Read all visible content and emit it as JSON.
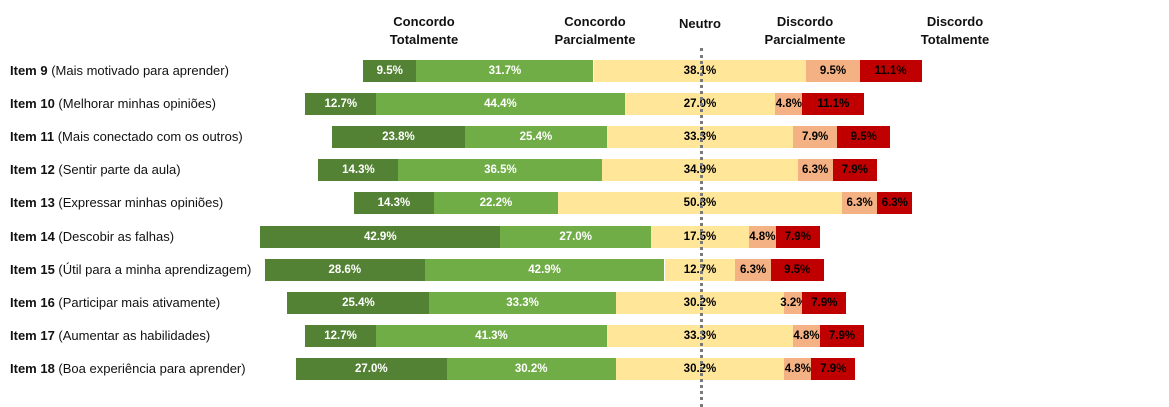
{
  "chart_data": {
    "type": "bar",
    "subtype": "diverging-stacked-horizontal",
    "unit": "%",
    "centered_on": "Neutro",
    "columns": [
      {
        "key": "ct",
        "line1": "Concordo",
        "line2": "Totalmente",
        "color": "#548235",
        "text_color": "#ffffff"
      },
      {
        "key": "cp",
        "line1": "Concordo",
        "line2": "Parcialmente",
        "color": "#70ad47",
        "text_color": "#ffffff"
      },
      {
        "key": "n",
        "line1": "Neutro",
        "line2": "",
        "color": "#ffe699",
        "text_color": "#000000"
      },
      {
        "key": "dp",
        "line1": "Discordo",
        "line2": "Parcialmente",
        "color": "#f4b183",
        "text_color": "#000000"
      },
      {
        "key": "dt",
        "line1": "Discordo",
        "line2": "Totalmente",
        "color": "#c00000",
        "text_color": "#000000"
      }
    ],
    "items": [
      {
        "id": "Item 9",
        "desc": "(Mais motivado para aprender)",
        "values": [
          9.5,
          31.7,
          38.1,
          9.5,
          11.1
        ]
      },
      {
        "id": "Item 10",
        "desc": "(Melhorar minhas opiniões)",
        "values": [
          12.7,
          44.4,
          27.0,
          4.8,
          11.1
        ]
      },
      {
        "id": "Item 11",
        "desc": "(Mais conectado com os outros)",
        "values": [
          23.8,
          25.4,
          33.3,
          7.9,
          9.5
        ]
      },
      {
        "id": "Item 12",
        "desc": "(Sentir parte da aula)",
        "values": [
          14.3,
          36.5,
          34.9,
          6.3,
          7.9
        ]
      },
      {
        "id": "Item 13",
        "desc": "(Expressar minhas opiniões)",
        "values": [
          14.3,
          22.2,
          50.8,
          6.3,
          6.3
        ]
      },
      {
        "id": "Item 14",
        "desc": "(Descobir as falhas)",
        "values": [
          42.9,
          27.0,
          17.5,
          4.8,
          7.9
        ]
      },
      {
        "id": "Item 15",
        "desc": "(Útil para a minha aprendizagem)",
        "values": [
          28.6,
          42.9,
          12.7,
          6.3,
          9.5
        ]
      },
      {
        "id": "Item 16",
        "desc": "(Participar mais ativamente)",
        "values": [
          25.4,
          33.3,
          30.2,
          3.2,
          7.9
        ]
      },
      {
        "id": "Item 17",
        "desc": "(Aumentar as habilidades)",
        "values": [
          12.7,
          41.3,
          33.3,
          4.8,
          7.9
        ]
      },
      {
        "id": "Item 18",
        "desc": "(Boa experiência para aprender)",
        "values": [
          27.0,
          30.2,
          30.2,
          4.8,
          7.9
        ]
      }
    ]
  }
}
